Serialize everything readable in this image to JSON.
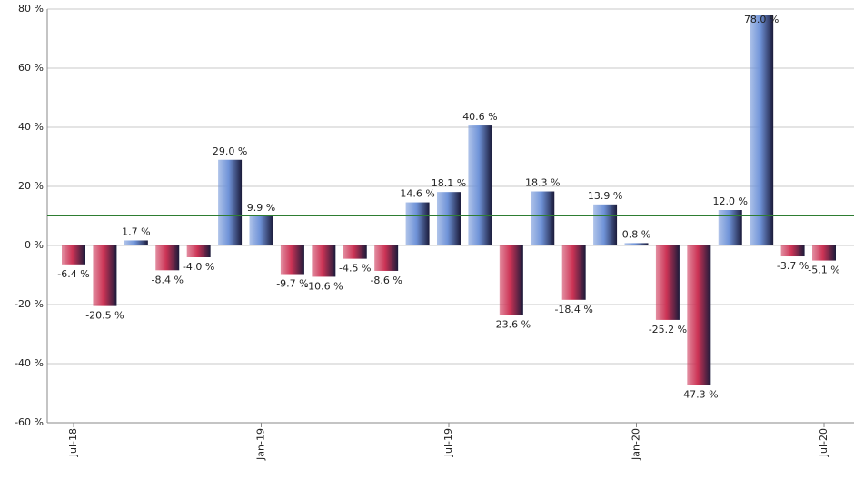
{
  "chart_data": {
    "type": "bar",
    "categories": [
      "Jul-18",
      null,
      null,
      null,
      null,
      null,
      "Jan-19",
      null,
      null,
      null,
      null,
      null,
      "Jul-19",
      null,
      null,
      null,
      null,
      null,
      "Jan-20",
      null,
      null,
      null,
      null,
      null,
      "Jul-20"
    ],
    "values": [
      -6.4,
      -20.5,
      1.7,
      -8.4,
      -4.0,
      29.0,
      9.9,
      -9.7,
      -10.6,
      -4.5,
      -8.6,
      14.6,
      18.1,
      40.6,
      -23.6,
      18.3,
      -18.4,
      13.9,
      0.8,
      -25.2,
      -47.3,
      12.0,
      78.0,
      -3.7,
      -5.1
    ],
    "value_labels": [
      "-6.4 %",
      "-20.5 %",
      "1.7 %",
      "-8.4 %",
      "-4.0 %",
      "29.0 %",
      "9.9 %",
      "-9.7 %",
      "-10.6 %",
      "-4.5 %",
      "-8.6 %",
      "14.6 %",
      "18.1 %",
      "40.6 %",
      "-23.6 %",
      "18.3 %",
      "-18.4 %",
      "13.9 %",
      "0.8 %",
      "-25.2 %",
      "-47.3 %",
      "12.0 %",
      "78.0 %",
      "-3.7 %",
      "-5.1 %"
    ],
    "positive_color": "#6f93d8",
    "negative_color": "#cc3355",
    "reference_lines": [
      10,
      -10
    ],
    "reference_color": "#2e7d32",
    "ylim": [
      -60,
      80
    ],
    "yticks": [
      {
        "value": -60,
        "label": "-60 %"
      },
      {
        "value": -40,
        "label": "-40 %"
      },
      {
        "value": -20,
        "label": "-20 %"
      },
      {
        "value": 0,
        "label": "0 %"
      },
      {
        "value": 20,
        "label": "20 %"
      },
      {
        "value": 40,
        "label": "40 %"
      },
      {
        "value": 60,
        "label": "60 %"
      },
      {
        "value": 80,
        "label": "80 %"
      }
    ],
    "grid": true
  }
}
